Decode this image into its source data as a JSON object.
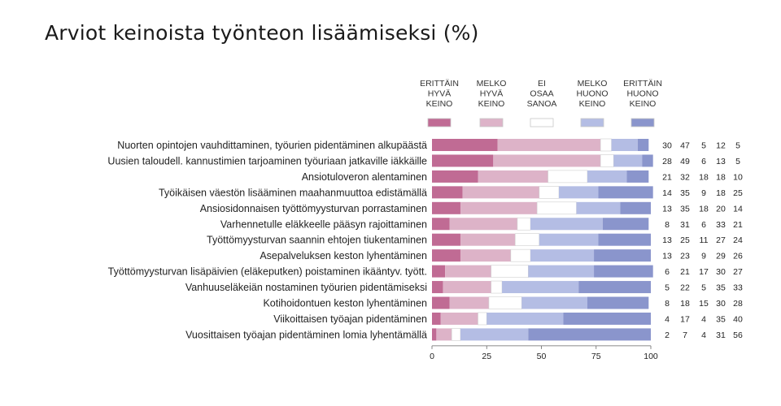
{
  "title": "Arviot keinoista työnteon lisäämiseksi (%)",
  "colors": [
    "#c06b94",
    "#ddb3c8",
    "#ffffff",
    "#b4bde4",
    "#8a95cc"
  ],
  "chart_data": {
    "type": "bar",
    "stacked": true,
    "orientation": "horizontal",
    "title": "Arviot keinoista työnteon lisäämiseksi (%)",
    "xlim": [
      0,
      100
    ],
    "xticks": [
      "0",
      "25",
      "50",
      "75",
      "100"
    ],
    "legend_position": "top",
    "categories": [
      "Nuorten opintojen vauhdittaminen, työurien pidentäminen alkupäästä",
      "Uusien taloudell. kannustimien tarjoaminen työuriaan jatkaville iäkkäille",
      "Ansiotuloveron alentaminen",
      "Työikäisen väestön lisääminen maahanmuuttoa edistämällä",
      "Ansiosidonnaisen työttömyysturvan porrastaminen",
      "Varhennetulle eläkkeelle pääsyn rajoittaminen",
      "Työttömyysturvan saannin ehtojen tiukentaminen",
      "Asepalveluksen keston lyhentäminen",
      "Työttömyysturvan lisäpäivien (eläkeputken) poistaminen ikääntyv. tyött.",
      "Vanhuuseläkeiän nostaminen työurien pidentämiseksi",
      "Kotihoidontuen keston lyhentäminen",
      "Viikoittaisen työajan pidentäminen",
      "Vuosittaisen työajan pidentäminen lomia lyhentämällä"
    ],
    "series": [
      {
        "name": [
          "ERITTÄIN",
          "HYVÄ",
          "KEINO"
        ],
        "values": [
          30,
          28,
          21,
          14,
          13,
          8,
          13,
          13,
          6,
          5,
          8,
          4,
          2
        ]
      },
      {
        "name": [
          "MELKO",
          "HYVÄ",
          "KEINO"
        ],
        "values": [
          47,
          49,
          32,
          35,
          35,
          31,
          25,
          23,
          21,
          22,
          18,
          17,
          7
        ]
      },
      {
        "name": [
          "EI",
          "OSAA",
          "SANOA"
        ],
        "values": [
          5,
          6,
          18,
          9,
          18,
          6,
          11,
          9,
          17,
          5,
          15,
          4,
          4
        ]
      },
      {
        "name": [
          "MELKO",
          "HUONO",
          "KEINO"
        ],
        "values": [
          12,
          13,
          18,
          18,
          20,
          33,
          27,
          29,
          30,
          35,
          30,
          35,
          31
        ]
      },
      {
        "name": [
          "ERITTÄIN",
          "HUONO",
          "KEINO"
        ],
        "values": [
          5,
          5,
          10,
          25,
          14,
          21,
          24,
          26,
          27,
          33,
          28,
          40,
          56
        ]
      }
    ]
  }
}
